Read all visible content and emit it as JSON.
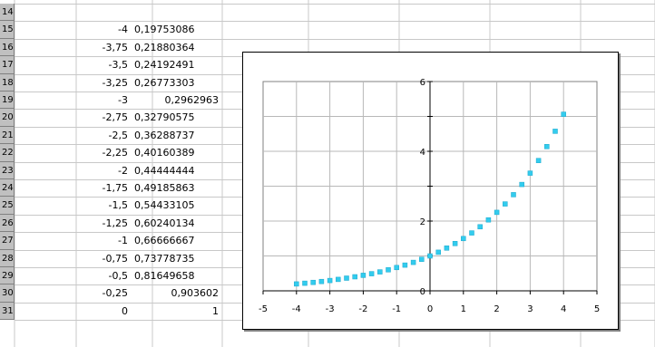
{
  "spreadsheet": {
    "rows": [
      {
        "row": "14",
        "x": "",
        "y": ""
      },
      {
        "row": "15",
        "x": "-4",
        "y": "0,19753086"
      },
      {
        "row": "16",
        "x": "-3,75",
        "y": "0,21880364"
      },
      {
        "row": "17",
        "x": "-3,5",
        "y": "0,24192491"
      },
      {
        "row": "18",
        "x": "-3,25",
        "y": "0,26773303"
      },
      {
        "row": "19",
        "x": "-3",
        "y": "0,2962963"
      },
      {
        "row": "20",
        "x": "-2,75",
        "y": "0,32790575"
      },
      {
        "row": "21",
        "x": "-2,5",
        "y": "0,36288737"
      },
      {
        "row": "22",
        "x": "-2,25",
        "y": "0,40160389"
      },
      {
        "row": "23",
        "x": "-2",
        "y": "0,44444444"
      },
      {
        "row": "24",
        "x": "-1,75",
        "y": "0,49185863"
      },
      {
        "row": "25",
        "x": "-1,5",
        "y": "0,54433105"
      },
      {
        "row": "26",
        "x": "-1,25",
        "y": "0,60240134"
      },
      {
        "row": "27",
        "x": "-1",
        "y": "0,66666667"
      },
      {
        "row": "28",
        "x": "-0,75",
        "y": "0,73778735"
      },
      {
        "row": "29",
        "x": "-0,5",
        "y": "0,81649658"
      },
      {
        "row": "30",
        "x": "-0,25",
        "y": "0,903602"
      },
      {
        "row": "31",
        "x": "0",
        "y": "1"
      }
    ]
  },
  "chart_data": {
    "type": "scatter",
    "title": "",
    "xlabel": "",
    "ylabel": "",
    "xlim": [
      -5,
      5
    ],
    "ylim": [
      0,
      6
    ],
    "x_ticks": [
      "-5",
      "-4",
      "-3",
      "-2",
      "-1",
      "0",
      "1",
      "2",
      "3",
      "4",
      "5"
    ],
    "y_ticks": [
      "0",
      "2",
      "4",
      "6"
    ],
    "grid": true,
    "legend": "none",
    "marker_color": "#33ccee",
    "series": [
      {
        "x": [
          -4,
          -3.75,
          -3.5,
          -3.25,
          -3,
          -2.75,
          -2.5,
          -2.25,
          -2,
          -1.75,
          -1.5,
          -1.25,
          -1,
          -0.75,
          -0.5,
          -0.25,
          0,
          0.25,
          0.5,
          0.75,
          1,
          1.25,
          1.5,
          1.75,
          2,
          2.25,
          2.5,
          2.75,
          3,
          3.25,
          3.5,
          3.75,
          4
        ],
        "y": [
          0.198,
          0.219,
          0.242,
          0.268,
          0.296,
          0.328,
          0.363,
          0.402,
          0.444,
          0.492,
          0.544,
          0.602,
          0.667,
          0.738,
          0.816,
          0.904,
          1,
          1.107,
          1.225,
          1.355,
          1.5,
          1.66,
          1.837,
          2.033,
          2.25,
          2.49,
          2.756,
          3.05,
          3.375,
          3.735,
          4.134,
          4.575,
          5.063
        ]
      }
    ]
  }
}
